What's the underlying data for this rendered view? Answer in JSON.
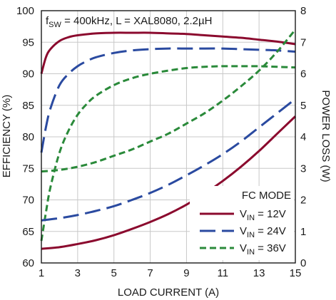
{
  "chart_data": {
    "type": "line",
    "annotation": {
      "main": "f",
      "sub": "SW",
      "rest": " = 400kHz, L = XAL8080, 2.2µH"
    },
    "xlabel": "LOAD CURRENT (A)",
    "ylabel_left": "EFFICIENCY (%)",
    "ylabel_right": "POWER LOSS (W)",
    "xlim": [
      1,
      15
    ],
    "ylim_left": [
      60,
      100
    ],
    "ylim_right": [
      0,
      8
    ],
    "x_ticks": [
      "1",
      "3",
      "5",
      "7",
      "9",
      "11",
      "13",
      "15"
    ],
    "y_ticks_left": [
      "60",
      "65",
      "70",
      "75",
      "80",
      "85",
      "90",
      "95",
      "100"
    ],
    "y_ticks_right": [
      "0",
      "1",
      "2",
      "3",
      "4",
      "5",
      "6",
      "7",
      "8"
    ],
    "grid": true,
    "legend": {
      "placement": "bottom-right",
      "title": "FC MODE",
      "entries": [
        {
          "prefix": "V",
          "sub": "IN",
          "suffix": " = 12V",
          "color": "#8b0a2e",
          "dash": "solid"
        },
        {
          "prefix": "V",
          "sub": "IN",
          "suffix": " = 24V",
          "color": "#2a4aa0",
          "dash": "long-dash"
        },
        {
          "prefix": "V",
          "sub": "IN",
          "suffix": " = 36V",
          "color": "#2a8a3a",
          "dash": "short-dash"
        }
      ]
    },
    "series": [
      {
        "vin": "12V",
        "quantity": "efficiency",
        "axis": "left",
        "color": "#8b0a2e",
        "dash": "solid",
        "x": [
          1,
          1.25,
          1.5,
          2,
          2.5,
          3,
          4,
          5,
          6,
          7,
          8,
          9,
          10,
          11,
          12,
          13,
          14,
          15
        ],
        "y": [
          90,
          92.6,
          93.9,
          95.2,
          95.8,
          96.1,
          96.4,
          96.5,
          96.5,
          96.5,
          96.4,
          96.3,
          96.1,
          95.9,
          95.7,
          95.4,
          95.1,
          94.7
        ]
      },
      {
        "vin": "24V",
        "quantity": "efficiency",
        "axis": "left",
        "color": "#2a4aa0",
        "dash": "long-dash",
        "x": [
          1,
          1.25,
          1.5,
          2,
          2.5,
          3,
          3.5,
          4,
          5,
          6,
          7,
          8,
          9,
          10,
          11,
          12,
          13,
          14,
          15
        ],
        "y": [
          77.5,
          81.5,
          84.5,
          88.2,
          90,
          91.2,
          92,
          92.6,
          93.3,
          93.7,
          93.9,
          94,
          94,
          94,
          94,
          93.9,
          93.8,
          93.7,
          93.5
        ]
      },
      {
        "vin": "36V",
        "quantity": "efficiency",
        "axis": "left",
        "color": "#2a8a3a",
        "dash": "short-dash",
        "x": [
          1,
          1.25,
          1.5,
          2,
          2.5,
          3,
          3.5,
          4,
          5,
          6,
          7,
          8,
          9,
          10,
          11,
          12,
          13,
          14,
          15
        ],
        "y": [
          63.5,
          68,
          72,
          77.5,
          81,
          83.5,
          85.2,
          86.5,
          88.2,
          89.3,
          90,
          90.5,
          90.9,
          91.1,
          91.2,
          91.2,
          91.2,
          91.1,
          91
        ]
      },
      {
        "vin": "12V",
        "quantity": "power_loss",
        "axis": "right",
        "color": "#8b0a2e",
        "dash": "solid",
        "x": [
          1,
          2,
          3,
          4,
          5,
          6,
          7,
          8,
          9,
          10,
          11,
          12,
          13,
          14,
          15
        ],
        "y": [
          0.45,
          0.5,
          0.6,
          0.72,
          0.88,
          1.08,
          1.3,
          1.55,
          1.85,
          2.2,
          2.6,
          3.05,
          3.55,
          4.1,
          4.65
        ]
      },
      {
        "vin": "24V",
        "quantity": "power_loss",
        "axis": "right",
        "color": "#2a4aa0",
        "dash": "long-dash",
        "x": [
          1,
          2,
          3,
          4,
          5,
          6,
          7,
          8,
          9,
          10,
          11,
          12,
          13,
          14,
          15
        ],
        "y": [
          1.35,
          1.42,
          1.52,
          1.65,
          1.8,
          2,
          2.22,
          2.48,
          2.78,
          3.1,
          3.45,
          3.85,
          4.3,
          4.75,
          5.2
        ]
      },
      {
        "vin": "36V",
        "quantity": "power_loss",
        "axis": "right",
        "color": "#2a8a3a",
        "dash": "short-dash",
        "x": [
          1,
          2,
          3,
          4,
          5,
          6,
          7,
          8,
          9,
          10,
          11,
          12,
          13,
          14,
          15
        ],
        "y": [
          2.9,
          2.95,
          3.05,
          3.2,
          3.4,
          3.6,
          3.85,
          4.1,
          4.42,
          4.75,
          5.15,
          5.6,
          6.1,
          6.7,
          7.4
        ]
      }
    ]
  }
}
